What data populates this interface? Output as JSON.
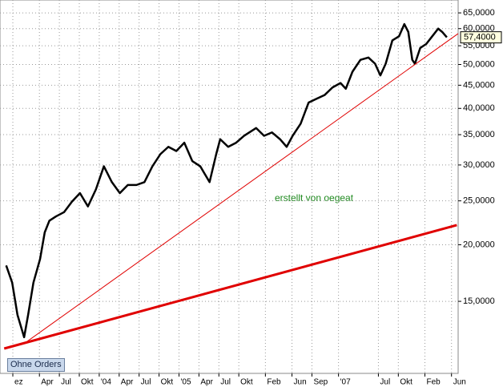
{
  "button": "Ohne Orders",
  "chart_data": {
    "type": "line",
    "log_y": true,
    "grid": true,
    "annotation": "erstellt von oegeat",
    "price_marker": {
      "value": 57.4,
      "label": "57,4000"
    },
    "xlim": [
      -1.93,
      67
    ],
    "ylim": [
      10.4,
      69.4
    ],
    "xticks": [
      {
        "value": 0,
        "label": "ez"
      },
      {
        "value": 4,
        "label": "Apr"
      },
      {
        "value": 7,
        "label": "Jul"
      },
      {
        "value": 10,
        "label": "Okt"
      },
      {
        "value": 13,
        "label": "'04"
      },
      {
        "value": 16,
        "label": "Apr"
      },
      {
        "value": 19,
        "label": "Jul"
      },
      {
        "value": 22,
        "label": "Okt"
      },
      {
        "value": 25,
        "label": "'05"
      },
      {
        "value": 28,
        "label": "Apr"
      },
      {
        "value": 31,
        "label": "Jul"
      },
      {
        "value": 34,
        "label": "Okt"
      },
      {
        "value": 38,
        "label": "Feb"
      },
      {
        "value": 42,
        "label": "Jun"
      },
      {
        "value": 45,
        "label": "Sep"
      },
      {
        "value": 49,
        "label": "'07"
      },
      {
        "value": 55,
        "label": "Jul"
      },
      {
        "value": 58,
        "label": "Okt"
      },
      {
        "value": 62,
        "label": "Feb"
      },
      {
        "value": 66,
        "label": "Jun"
      }
    ],
    "yticks": [
      {
        "value": 15,
        "label": "15,0000"
      },
      {
        "value": 20,
        "label": "20,0000"
      },
      {
        "value": 25,
        "label": "25,0000"
      },
      {
        "value": 30,
        "label": "30,0000"
      },
      {
        "value": 35,
        "label": "35,0000"
      },
      {
        "value": 40,
        "label": "40,0000"
      },
      {
        "value": 45,
        "label": "45,0000"
      },
      {
        "value": 50,
        "label": "50,0000"
      },
      {
        "value": 55,
        "label": "55,0000"
      },
      {
        "value": 60,
        "label": "60,0000"
      },
      {
        "value": 65,
        "label": "65,0000"
      }
    ],
    "series": [
      {
        "color": "#000000",
        "width": 2.5,
        "x": [
          -1.0,
          -0.1,
          0.7,
          1.7,
          2.3,
          3.1,
          4.1,
          4.8,
          5.5,
          6.5,
          7.7,
          8.9,
          10.1,
          11.3,
          12.5,
          13.7,
          14.9,
          16.1,
          17.3,
          18.6,
          19.8,
          21.0,
          22.2,
          23.4,
          24.6,
          25.8,
          27.0,
          28.2,
          29.6,
          30.6,
          31.2,
          32.4,
          33.6,
          34.8,
          36.6,
          37.8,
          39.0,
          40.2,
          41.2,
          42.1,
          43.3,
          44.5,
          45.7,
          46.9,
          48.1,
          49.3,
          50.1,
          51.1,
          52.3,
          53.5,
          54.5,
          55.3,
          56.1,
          57.1,
          58.1,
          58.9,
          59.5,
          60.1,
          60.5,
          61.3,
          62.2,
          63.1,
          64.0,
          64.6,
          65.3
        ],
        "values": [
          18.0,
          16.5,
          14.0,
          12.5,
          14.0,
          16.5,
          18.6,
          21.3,
          22.6,
          23.1,
          23.6,
          24.9,
          26.0,
          24.3,
          26.5,
          29.8,
          27.5,
          26.0,
          27.1,
          27.1,
          27.5,
          29.8,
          31.7,
          32.9,
          32.2,
          33.6,
          30.6,
          29.8,
          27.5,
          31.7,
          34.2,
          32.9,
          33.6,
          34.8,
          36.2,
          34.8,
          35.4,
          34.2,
          32.9,
          34.8,
          37.0,
          41.2,
          42.0,
          42.8,
          44.5,
          45.5,
          44.2,
          48.2,
          51.2,
          51.8,
          50.2,
          47.3,
          50.2,
          56.5,
          57.7,
          61.4,
          59.0,
          51.2,
          50.2,
          54.4,
          55.5,
          57.7,
          60.0,
          59.0,
          57.4
        ]
      },
      {
        "color": "#e00000",
        "width": 1,
        "x": [
          1.7,
          67
        ],
        "values": [
          12.1,
          58.5
        ]
      },
      {
        "color": "#e00000",
        "width": 3,
        "x": [
          -1.3,
          66.8
        ],
        "values": [
          11.8,
          22.1
        ]
      }
    ]
  }
}
